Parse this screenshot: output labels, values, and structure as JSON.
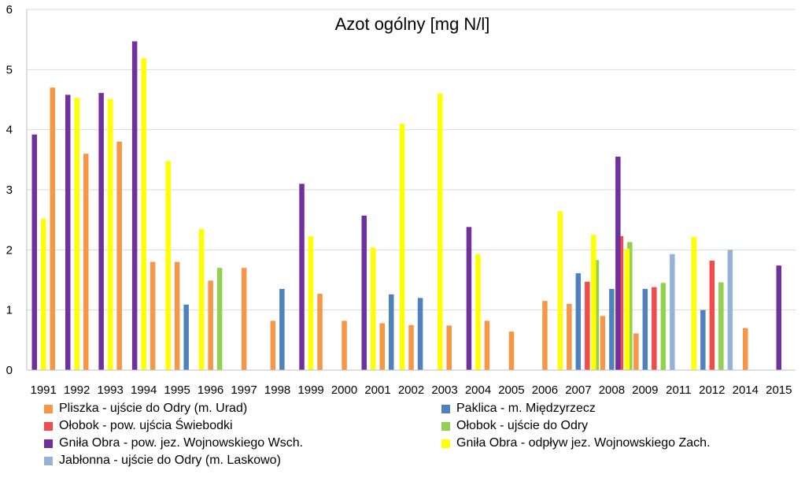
{
  "chart_data": {
    "type": "bar",
    "title": "Azot ogólny [mg N/l]",
    "xlabel": "",
    "ylabel": "",
    "ylim": [
      0,
      6
    ],
    "yticks": [
      0,
      1,
      2,
      3,
      4,
      5,
      6
    ],
    "grid": "horizontal",
    "legend_position": "bottom",
    "categories": [
      "1991",
      "1992",
      "1993",
      "1994",
      "1995",
      "1996",
      "1997",
      "1998",
      "1999",
      "2000",
      "2001",
      "2002",
      "2003",
      "2004",
      "2005",
      "2006",
      "2007",
      "2008",
      "2009",
      "2011",
      "2012",
      "2014",
      "2015"
    ],
    "series": [
      {
        "name": "Gniła Obra - pow. jez. Wojnowskiego Wsch.",
        "color": "#7030a0",
        "values": [
          3.92,
          4.58,
          4.61,
          5.47,
          null,
          null,
          null,
          null,
          3.1,
          null,
          2.57,
          null,
          null,
          2.38,
          null,
          null,
          null,
          null,
          3.55,
          null,
          null,
          null,
          1.74
        ]
      },
      {
        "name": "Gniła Obra - odpływ jez. Wojnowskiego Zach.",
        "color": "#ffff00",
        "values": [
          2.52,
          4.53,
          4.51,
          5.19,
          3.48,
          2.35,
          null,
          null,
          2.23,
          null,
          2.04,
          4.1,
          4.6,
          1.93,
          null,
          null,
          2.64,
          2.25,
          2.02,
          null,
          2.22,
          null,
          null
        ]
      },
      {
        "name": "Pliszka - ujście do Odry (m. Urad)",
        "color": "#f79646",
        "values": [
          4.7,
          3.6,
          3.8,
          1.8,
          1.8,
          1.49,
          1.7,
          0.82,
          1.27,
          0.82,
          0.78,
          0.75,
          0.74,
          0.82,
          0.64,
          1.15,
          1.1,
          0.9,
          0.61,
          null,
          null,
          0.7,
          null
        ]
      },
      {
        "name": "Paklica - m. Międzyrzecz",
        "color": "#4f81bd",
        "values": [
          null,
          null,
          null,
          null,
          1.09,
          null,
          null,
          1.35,
          null,
          null,
          1.26,
          1.2,
          null,
          null,
          null,
          null,
          1.61,
          1.35,
          1.35,
          null,
          1.0,
          null,
          null
        ]
      },
      {
        "name": "Ołobok - pow. ujścia Świebodki",
        "color": "#f24b4b",
        "values": [
          null,
          null,
          null,
          null,
          null,
          null,
          null,
          null,
          null,
          null,
          null,
          null,
          null,
          null,
          null,
          null,
          1.47,
          2.23,
          1.38,
          null,
          1.82,
          null,
          null
        ]
      },
      {
        "name": "Ołobok - ujście do Odry",
        "color": "#92d050",
        "values": [
          null,
          null,
          null,
          null,
          null,
          1.7,
          null,
          null,
          null,
          null,
          null,
          null,
          null,
          null,
          null,
          null,
          1.83,
          2.13,
          1.45,
          null,
          1.46,
          null,
          null
        ]
      },
      {
        "name": "Jabłonna - ujście do Odry (m. Laskowo)",
        "color": "#95b3d7",
        "values": [
          null,
          null,
          null,
          null,
          null,
          null,
          null,
          null,
          null,
          null,
          null,
          null,
          null,
          null,
          null,
          null,
          null,
          null,
          1.93,
          null,
          2.0,
          null,
          null
        ]
      }
    ]
  },
  "legend": {
    "items": [
      {
        "label": "Pliszka - ujście do Odry (m. Urad)",
        "color": "#f79646"
      },
      {
        "label": "Paklica - m. Międzyrzecz",
        "color": "#4f81bd"
      },
      {
        "label": "Ołobok - pow. ujścia Świebodki",
        "color": "#f24b4b"
      },
      {
        "label": "Ołobok - ujście do Odry",
        "color": "#92d050"
      },
      {
        "label": "Gniła Obra - pow. jez. Wojnowskiego Wsch.",
        "color": "#7030a0"
      },
      {
        "label": "Gniła Obra - odpływ jez. Wojnowskiego Zach.",
        "color": "#ffff00"
      },
      {
        "label": "Jabłonna - ujście do Odry (m. Laskowo)",
        "color": "#95b3d7"
      }
    ]
  }
}
